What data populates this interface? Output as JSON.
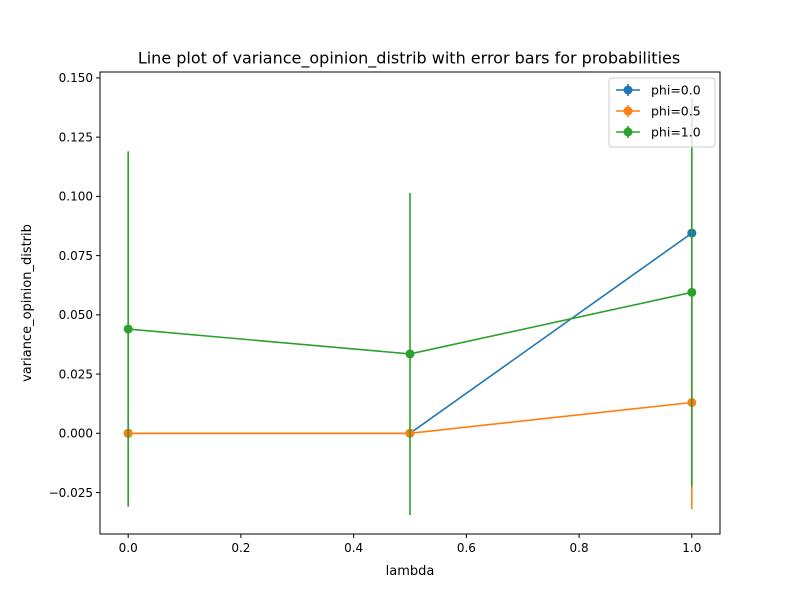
{
  "chart_data": {
    "type": "line",
    "title": "Line plot of variance_opinion_distrib with error bars for probabilities",
    "xlabel": "lambda",
    "ylabel": "variance_opinion_distrib",
    "xlim": [
      -0.05,
      1.05
    ],
    "ylim": [
      -0.0425,
      0.1525
    ],
    "xticks": [
      0.0,
      0.2,
      0.4,
      0.6,
      0.8,
      1.0
    ],
    "xtick_labels": [
      "0.0",
      "0.2",
      "0.4",
      "0.6",
      "0.8",
      "1.0"
    ],
    "yticks": [
      -0.025,
      0.0,
      0.025,
      0.05,
      0.075,
      0.1,
      0.125,
      0.15
    ],
    "ytick_labels": [
      "−0.025",
      "0.000",
      "0.025",
      "0.050",
      "0.075",
      "0.100",
      "0.125",
      "0.150"
    ],
    "grid": false,
    "legend_position": "top-right",
    "x": [
      0.0,
      0.5,
      1.0
    ],
    "series": [
      {
        "name": "phi=0.0",
        "color": "#1f77b4",
        "values": [
          0.0,
          0.0,
          0.0845
        ],
        "errors": [
          0.0,
          0.0,
          0.0
        ]
      },
      {
        "name": "phi=0.5",
        "color": "#ff7f0e",
        "values": [
          0.0,
          0.0,
          0.013
        ],
        "errors": [
          0.0,
          0.0,
          0.045
        ]
      },
      {
        "name": "phi=1.0",
        "color": "#2ca02c",
        "values": [
          0.044,
          0.0335,
          0.0595
        ],
        "errors": [
          0.075,
          0.068,
          0.082
        ]
      }
    ]
  }
}
